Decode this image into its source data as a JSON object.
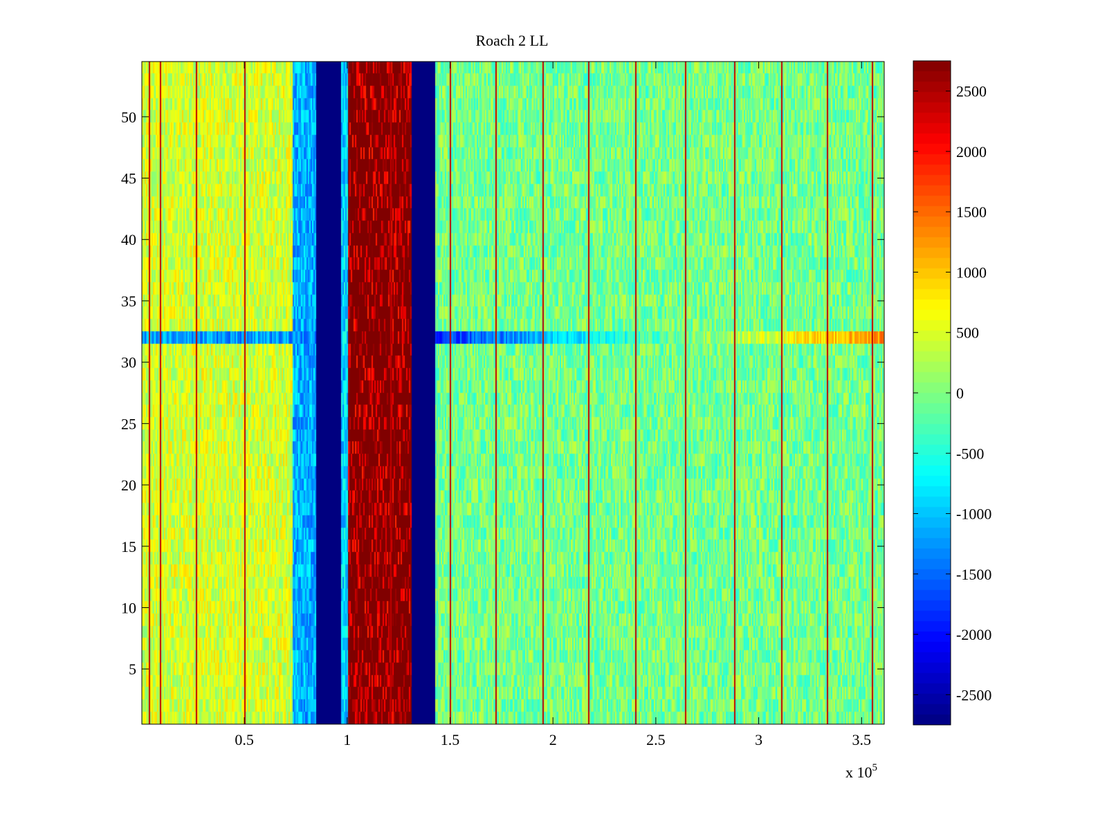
{
  "chart_data": {
    "type": "heatmap",
    "title": "Roach 2 LL",
    "xlabel": "",
    "ylabel": "",
    "x_range": [
      200,
      361000
    ],
    "y_range": [
      0.5,
      54.5
    ],
    "x_ticks": [
      50000,
      100000,
      150000,
      200000,
      250000,
      300000,
      350000
    ],
    "x_tick_labels": [
      "0.5",
      "1",
      "1.5",
      "2",
      "2.5",
      "3",
      "3.5"
    ],
    "x_multiplier_label": "x 10",
    "x_multiplier_exponent": "5",
    "y_ticks": [
      5,
      10,
      15,
      20,
      25,
      30,
      35,
      40,
      45,
      50
    ],
    "y_tick_labels": [
      "5",
      "10",
      "15",
      "20",
      "25",
      "30",
      "35",
      "40",
      "45",
      "50"
    ],
    "rows": 54,
    "colormap": "jet",
    "color_range": [
      -2750,
      2750
    ],
    "colorbar_ticks": [
      2500,
      2000,
      1500,
      1000,
      500,
      0,
      -500,
      -1000,
      -1500,
      -2000,
      -2500
    ],
    "colorbar_tick_labels": [
      "2500",
      "2000",
      "1500",
      "1000",
      "500",
      "0",
      "-500",
      "-1000",
      "-1500",
      "-2000",
      "-2500"
    ],
    "grid": false,
    "column_bands": [
      {
        "x_start": 200,
        "x_end": 73000,
        "value": 450
      },
      {
        "x_start": 73000,
        "x_end": 85000,
        "value": -1100
      },
      {
        "x_start": 85000,
        "x_end": 97000,
        "value": -2750
      },
      {
        "x_start": 97000,
        "x_end": 100500,
        "value": -900
      },
      {
        "x_start": 100500,
        "x_end": 131000,
        "value": 2750
      },
      {
        "x_start": 131000,
        "x_end": 142500,
        "value": -2750
      },
      {
        "x_start": 142500,
        "x_end": 361000,
        "value": -50
      }
    ],
    "anomalous_row": {
      "row": 32,
      "value_left": -1800,
      "value_right": 1300
    },
    "narrow_peak_columns_x": [
      3500,
      9000,
      26500,
      50000,
      121000,
      150000,
      172000,
      195000,
      217000,
      240000,
      264000,
      288000,
      311000,
      333000,
      355000
    ],
    "narrow_peak_value": 2400
  }
}
